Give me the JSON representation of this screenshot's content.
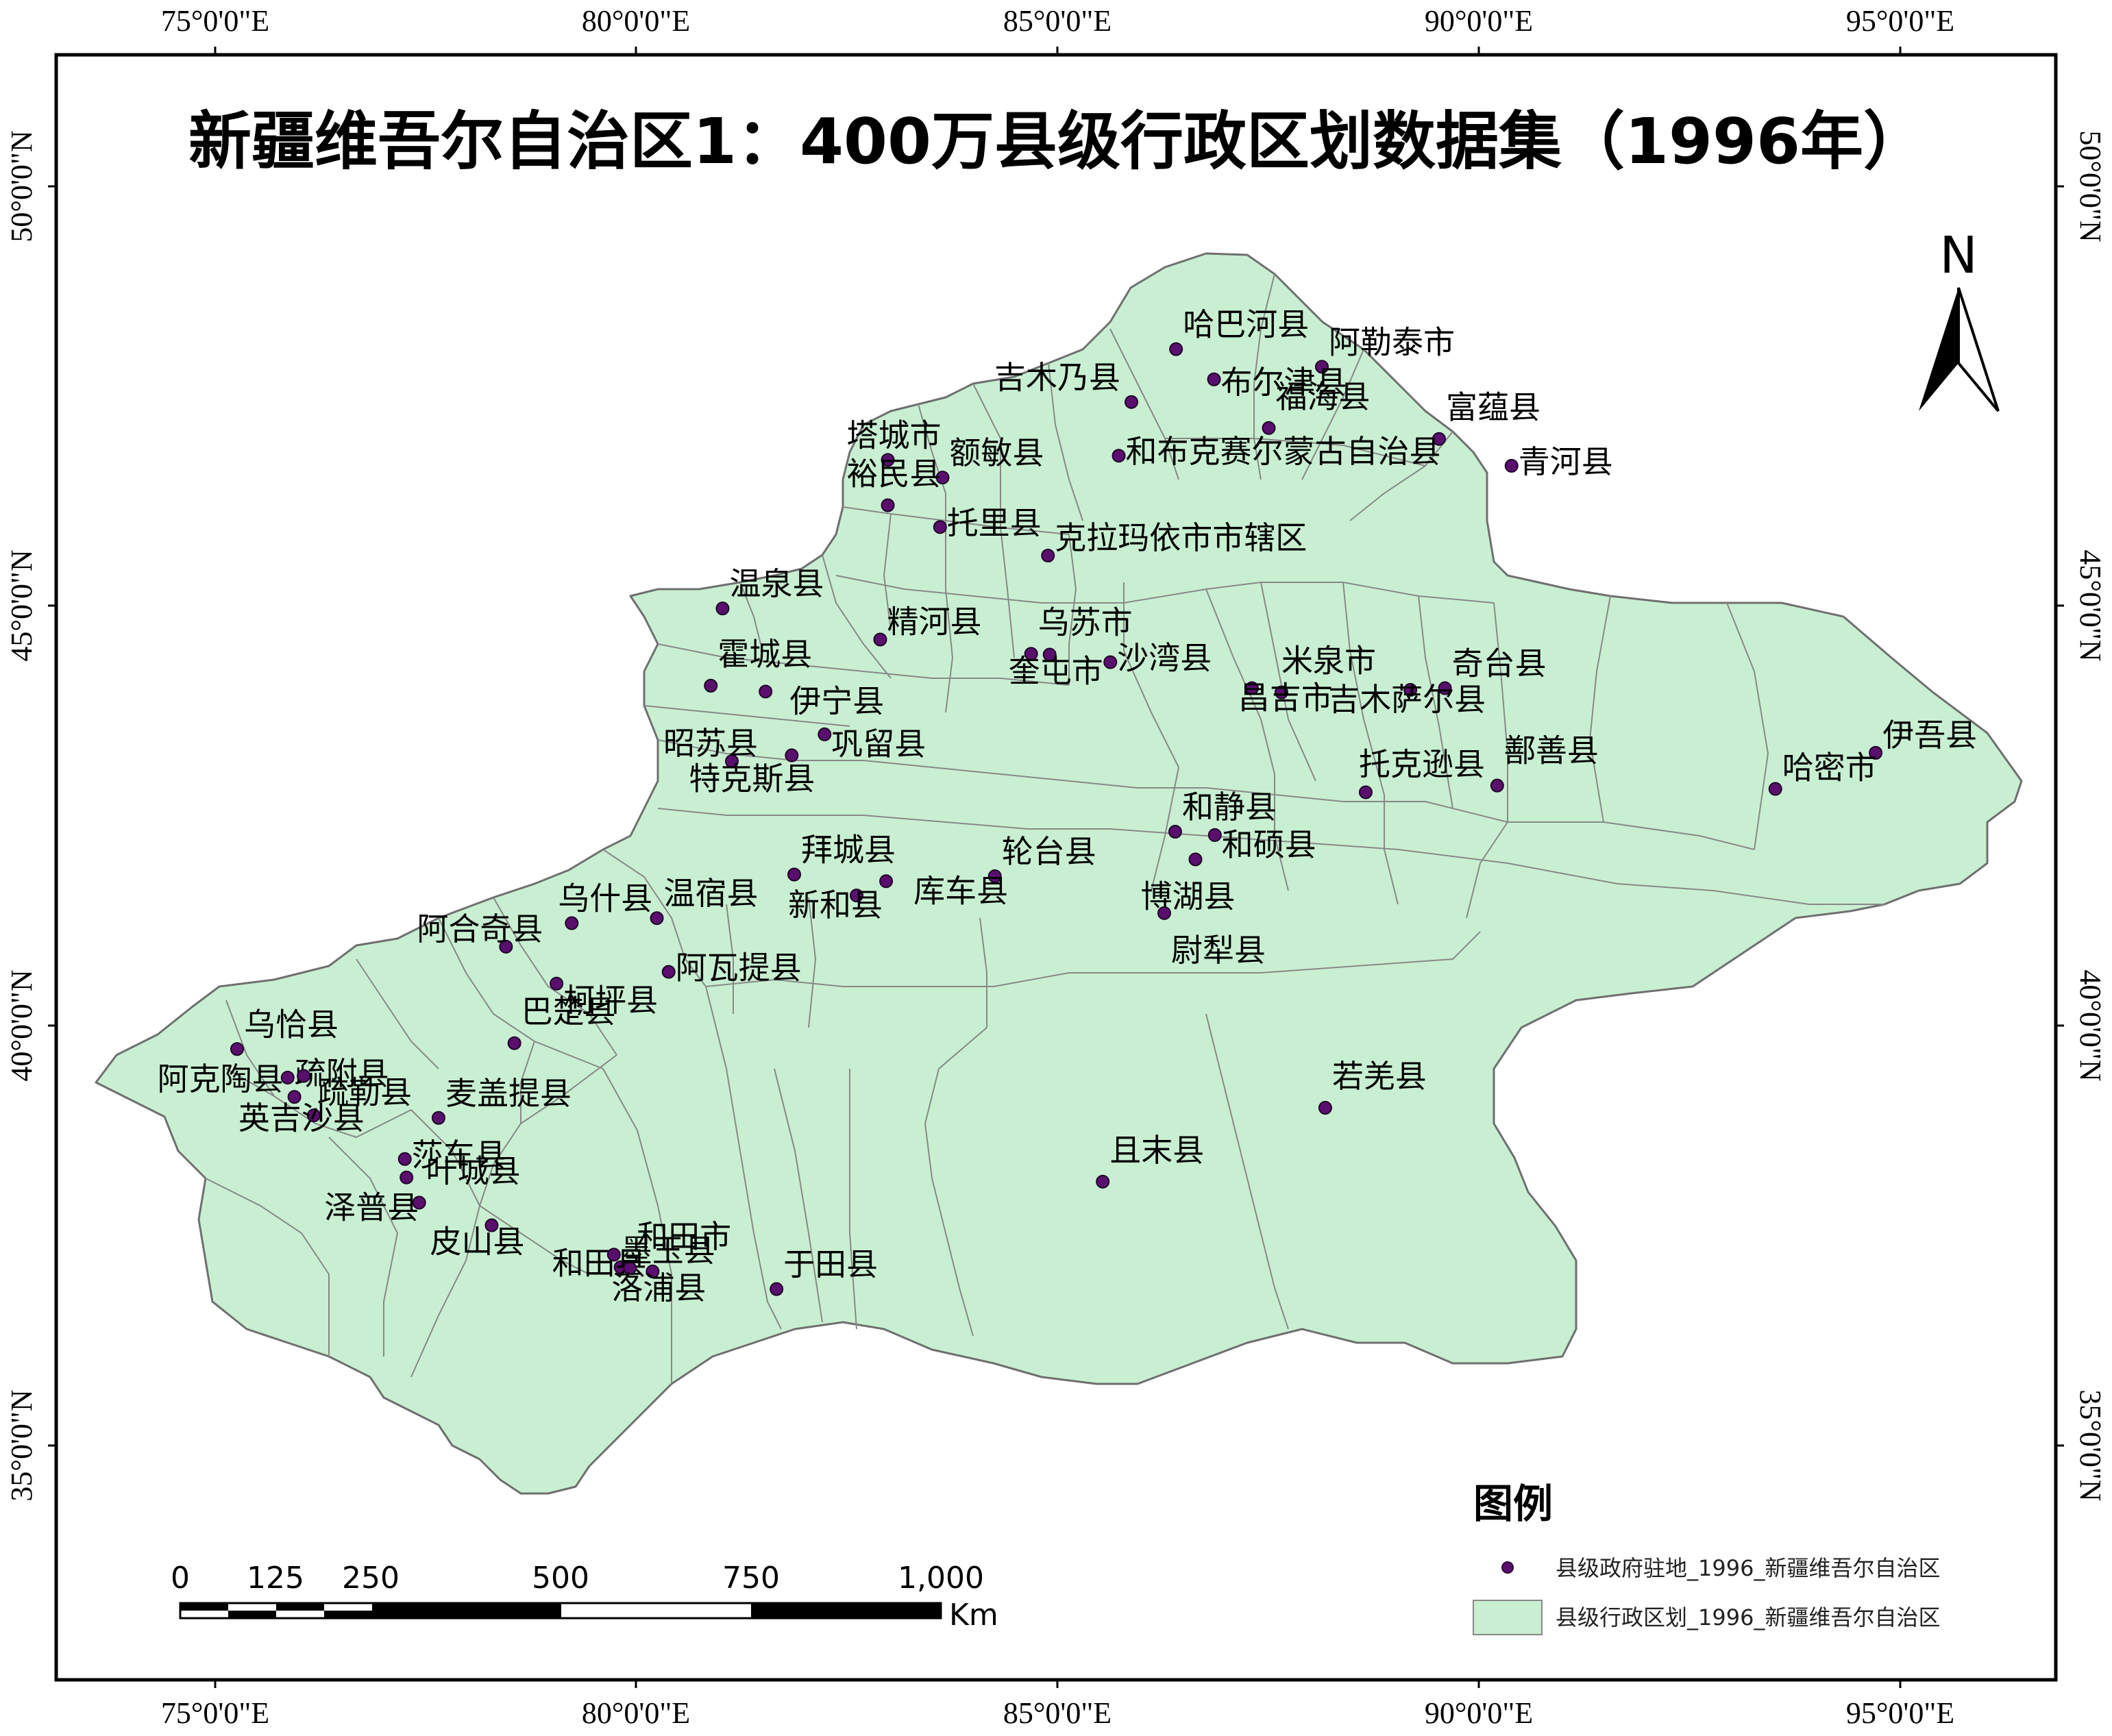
{
  "map": {
    "title": "新疆维吾尔自治区1：400万县级行政区划数据集（1996年）",
    "longitude_ticks": [
      "75°0'0\"E",
      "80°0'0\"E",
      "85°0'0\"E",
      "90°0'0\"E",
      "95°0'0\"E"
    ],
    "latitude_ticks": [
      "50°0'0\"N",
      "45°0'0\"N",
      "40°0'0\"N",
      "35°0'0\"N"
    ],
    "north_arrow_label": "N",
    "fill_color": "#c8efd1",
    "boundary_color": "#888888",
    "point_color": "#5a0f6e"
  },
  "places": [
    {
      "name": "哈巴河县",
      "lon": 86.4,
      "lat": 48.06
    },
    {
      "name": "阿勒泰市",
      "lon": 88.13,
      "lat": 47.85
    },
    {
      "name": "吉木乃县",
      "lon": 85.87,
      "lat": 47.43
    },
    {
      "name": "布尔津县",
      "lon": 86.85,
      "lat": 47.7
    },
    {
      "name": "福海县",
      "lon": 87.5,
      "lat": 47.12
    },
    {
      "name": "富蕴县",
      "lon": 89.52,
      "lat": 46.99
    },
    {
      "name": "青河县",
      "lon": 90.38,
      "lat": 46.67
    },
    {
      "name": "和布克赛尔蒙古自治县",
      "lon": 85.72,
      "lat": 46.79
    },
    {
      "name": "塔城市",
      "lon": 82.98,
      "lat": 46.74
    },
    {
      "name": "额敏县",
      "lon": 83.63,
      "lat": 46.53
    },
    {
      "name": "裕民县",
      "lon": 82.98,
      "lat": 46.2
    },
    {
      "name": "托里县",
      "lon": 83.6,
      "lat": 45.94
    },
    {
      "name": "克拉玛依市市辖区",
      "lon": 84.88,
      "lat": 45.6
    },
    {
      "name": "温泉县",
      "lon": 81.02,
      "lat": 44.97
    },
    {
      "name": "精河县",
      "lon": 82.89,
      "lat": 44.6
    },
    {
      "name": "乌苏市",
      "lon": 84.68,
      "lat": 44.43
    },
    {
      "name": "奎屯市",
      "lon": 84.9,
      "lat": 44.42
    },
    {
      "name": "沙湾县",
      "lon": 85.62,
      "lat": 44.33
    },
    {
      "name": "霍城县",
      "lon": 80.88,
      "lat": 44.05
    },
    {
      "name": "伊宁县",
      "lon": 81.53,
      "lat": 43.98
    },
    {
      "name": "米泉市",
      "lon": 87.65,
      "lat": 43.97
    },
    {
      "name": "昌吉市",
      "lon": 87.3,
      "lat": 44.02
    },
    {
      "name": "奇台县",
      "lon": 89.59,
      "lat": 44.02
    },
    {
      "name": "吉木萨尔县",
      "lon": 89.18,
      "lat": 44.0
    },
    {
      "name": "昭苏县",
      "lon": 81.13,
      "lat": 43.15
    },
    {
      "name": "巩留县",
      "lon": 82.23,
      "lat": 43.47
    },
    {
      "name": "特克斯县",
      "lon": 81.84,
      "lat": 43.22
    },
    {
      "name": "伊吾县",
      "lon": 94.7,
      "lat": 43.25
    },
    {
      "name": "哈密市",
      "lon": 93.51,
      "lat": 42.82
    },
    {
      "name": "托克逊县",
      "lon": 88.65,
      "lat": 42.78
    },
    {
      "name": "鄯善县",
      "lon": 90.21,
      "lat": 42.86
    },
    {
      "name": "和静县",
      "lon": 86.39,
      "lat": 42.31
    },
    {
      "name": "和硕县",
      "lon": 86.86,
      "lat": 42.27
    },
    {
      "name": "拜城县",
      "lon": 81.87,
      "lat": 41.8
    },
    {
      "name": "轮台县",
      "lon": 84.25,
      "lat": 41.78
    },
    {
      "name": "库车县",
      "lon": 82.96,
      "lat": 41.72
    },
    {
      "name": "博湖县",
      "lon": 86.63,
      "lat": 41.98
    },
    {
      "name": "温宿县",
      "lon": 80.24,
      "lat": 41.28
    },
    {
      "name": "乌什县",
      "lon": 79.23,
      "lat": 41.22
    },
    {
      "name": "新和县",
      "lon": 82.61,
      "lat": 41.55
    },
    {
      "name": "尉犁县",
      "lon": 86.26,
      "lat": 41.34
    },
    {
      "name": "阿合奇县",
      "lon": 78.45,
      "lat": 40.94
    },
    {
      "name": "柯坪县",
      "lon": 79.05,
      "lat": 40.5
    },
    {
      "name": "阿瓦提县",
      "lon": 80.38,
      "lat": 40.64
    },
    {
      "name": "巴楚县",
      "lon": 78.55,
      "lat": 39.79
    },
    {
      "name": "乌恰县",
      "lon": 75.26,
      "lat": 39.72
    },
    {
      "name": "阿克陶县",
      "lon": 75.94,
      "lat": 39.15
    },
    {
      "name": "疏附县",
      "lon": 75.86,
      "lat": 39.38
    },
    {
      "name": "麦盖提县",
      "lon": 77.65,
      "lat": 38.9
    },
    {
      "name": "疏勒县",
      "lon": 76.05,
      "lat": 39.4
    },
    {
      "name": "英吉沙县",
      "lon": 76.17,
      "lat": 38.93
    },
    {
      "name": "若羌县",
      "lon": 88.17,
      "lat": 39.02
    },
    {
      "name": "莎车县",
      "lon": 77.25,
      "lat": 38.41
    },
    {
      "name": "且末县",
      "lon": 85.53,
      "lat": 38.14
    },
    {
      "name": "泽普县",
      "lon": 77.27,
      "lat": 38.19
    },
    {
      "name": "叶城县",
      "lon": 77.42,
      "lat": 37.89
    },
    {
      "name": "皮山县",
      "lon": 78.28,
      "lat": 37.62
    },
    {
      "name": "和田县",
      "lon": 79.81,
      "lat": 37.12
    },
    {
      "name": "和田市",
      "lon": 79.92,
      "lat": 37.11
    },
    {
      "name": "洛浦县",
      "lon": 80.19,
      "lat": 37.07
    },
    {
      "name": "于田县",
      "lon": 81.66,
      "lat": 36.86
    },
    {
      "name": "墨玉县",
      "lon": 79.73,
      "lat": 37.27
    }
  ],
  "legend": {
    "title": "图例",
    "point_label": "县级政府驻地_1996_新疆维吾尔自治区",
    "area_label": "县级行政区划_1996_新疆维吾尔自治区"
  },
  "scale_bar": {
    "labels": [
      "0",
      "125",
      "250",
      "500",
      "750",
      "1,000"
    ],
    "unit": "Km"
  }
}
